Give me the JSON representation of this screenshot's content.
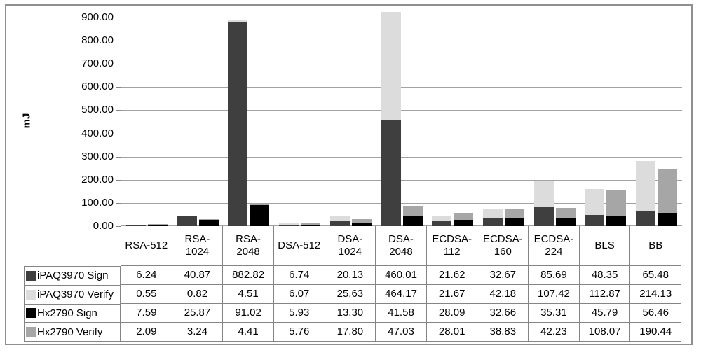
{
  "chart_data": {
    "type": "bar",
    "stacked": true,
    "orientation": "vertical",
    "ylabel": "mJ",
    "ylim": [
      0,
      900
    ],
    "ytick_step": 100,
    "y_tick_labels": [
      "900.00",
      "800.00",
      "700.00",
      "600.00",
      "500.00",
      "400.00",
      "300.00",
      "200.00",
      "100.00",
      "0.00"
    ],
    "grid": "horizontal",
    "legend_position": "data-table-left",
    "categories": [
      "RSA-512",
      "RSA-1024",
      "RSA-2048",
      "DSA-512",
      "DSA-1024",
      "DSA-2048",
      "ECDSA-112",
      "ECDSA-160",
      "ECDSA-224",
      "BLS",
      "BB"
    ],
    "category_label_lines": [
      [
        "RSA-512"
      ],
      [
        "RSA-",
        "1024"
      ],
      [
        "RSA-",
        "2048"
      ],
      [
        "DSA-512"
      ],
      [
        "DSA-",
        "1024"
      ],
      [
        "DSA-",
        "2048"
      ],
      [
        "ECDSA-",
        "112"
      ],
      [
        "ECDSA-",
        "160"
      ],
      [
        "ECDSA-",
        "224"
      ],
      [
        "BLS"
      ],
      [
        "BB"
      ]
    ],
    "bar_groups": [
      {
        "name": "iPAQ3970",
        "series_indexes": [
          0,
          1
        ]
      },
      {
        "name": "Hx2790",
        "series_indexes": [
          2,
          3
        ]
      }
    ],
    "series": [
      {
        "name": "iPAQ3970 Sign",
        "color": "#3F3F3F",
        "values": [
          "6.24",
          "40.87",
          "882.82",
          "6.74",
          "20.13",
          "460.01",
          "21.62",
          "32.67",
          "85.69",
          "48.35",
          "65.48"
        ]
      },
      {
        "name": "iPAQ3970 Verify",
        "color": "#DCDCDC",
        "values": [
          "0.55",
          "0.82",
          "4.51",
          "6.07",
          "25.63",
          "464.17",
          "21.67",
          "42.18",
          "107.42",
          "112.87",
          "214.13"
        ]
      },
      {
        "name": "Hx2790 Sign",
        "color": "#000000",
        "values": [
          "7.59",
          "25.87",
          "91.02",
          "5.93",
          "13.30",
          "41.58",
          "28.09",
          "32.66",
          "35.31",
          "45.79",
          "56.46"
        ]
      },
      {
        "name": "Hx2790 Verify",
        "color": "#A6A6A6",
        "values": [
          "2.09",
          "3.24",
          "4.41",
          "5.76",
          "17.80",
          "47.03",
          "28.01",
          "38.83",
          "42.23",
          "108.07",
          "190.44"
        ]
      }
    ]
  },
  "colors": {
    "grid_line": "#A3A3A3",
    "table_border": "#848484",
    "figure_border": "#8F8F8F",
    "background": "#FFFFFF"
  }
}
